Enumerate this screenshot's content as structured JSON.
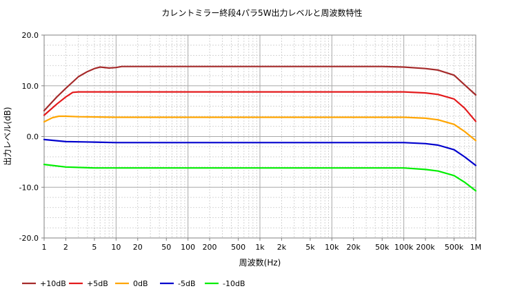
{
  "chart_data": {
    "type": "line",
    "title": "カレントミラー終段4パラ5W出力レベルと周波数特性",
    "xlabel": "周波数(Hz)",
    "ylabel": "出力レベル(dB)",
    "x_scale": "log",
    "xlim": [
      1,
      1000000
    ],
    "ylim": [
      -20,
      20
    ],
    "grid": true,
    "legend_position": "bottom-left",
    "x_ticks": [
      {
        "value": 1,
        "label": "1"
      },
      {
        "value": 2,
        "label": "2"
      },
      {
        "value": 5,
        "label": "5"
      },
      {
        "value": 10,
        "label": "10"
      },
      {
        "value": 20,
        "label": "20"
      },
      {
        "value": 50,
        "label": "50"
      },
      {
        "value": 100,
        "label": "100"
      },
      {
        "value": 200,
        "label": "200"
      },
      {
        "value": 500,
        "label": "500"
      },
      {
        "value": 1000,
        "label": "1k"
      },
      {
        "value": 2000,
        "label": "2k"
      },
      {
        "value": 5000,
        "label": "5k"
      },
      {
        "value": 10000,
        "label": "10k"
      },
      {
        "value": 20000,
        "label": "20k"
      },
      {
        "value": 50000,
        "label": "50k"
      },
      {
        "value": 100000,
        "label": "100k"
      },
      {
        "value": 200000,
        "label": "200k"
      },
      {
        "value": 500000,
        "label": "500k"
      },
      {
        "value": 1000000,
        "label": "1M"
      }
    ],
    "y_ticks": [
      {
        "value": 20,
        "label": "20.0"
      },
      {
        "value": 10,
        "label": "10.0"
      },
      {
        "value": 0,
        "label": "0.0"
      },
      {
        "value": -10,
        "label": "-10.0"
      },
      {
        "value": -20,
        "label": "-20.0"
      }
    ],
    "series": [
      {
        "name": "+10dB",
        "color": "#a52a2a",
        "points": [
          [
            1,
            5.1
          ],
          [
            1.5,
            7.8
          ],
          [
            2,
            9.5
          ],
          [
            3,
            11.8
          ],
          [
            4,
            12.8
          ],
          [
            5,
            13.4
          ],
          [
            6,
            13.7
          ],
          [
            8,
            13.5
          ],
          [
            10,
            13.6
          ],
          [
            12,
            13.8
          ],
          [
            20,
            13.8
          ],
          [
            100,
            13.8
          ],
          [
            1000,
            13.8
          ],
          [
            10000,
            13.8
          ],
          [
            50000,
            13.8
          ],
          [
            100000,
            13.7
          ],
          [
            200000,
            13.4
          ],
          [
            300000,
            13.1
          ],
          [
            500000,
            12.1
          ],
          [
            700000,
            10.2
          ],
          [
            1000000,
            8.2
          ]
        ]
      },
      {
        "name": "+5dB",
        "color": "#e31a1c",
        "points": [
          [
            1,
            4.2
          ],
          [
            1.5,
            6.4
          ],
          [
            2,
            7.8
          ],
          [
            2.5,
            8.7
          ],
          [
            3,
            8.8
          ],
          [
            5,
            8.8
          ],
          [
            10,
            8.8
          ],
          [
            100,
            8.8
          ],
          [
            1000,
            8.8
          ],
          [
            10000,
            8.8
          ],
          [
            100000,
            8.8
          ],
          [
            200000,
            8.6
          ],
          [
            300000,
            8.3
          ],
          [
            500000,
            7.4
          ],
          [
            700000,
            5.6
          ],
          [
            1000000,
            3.0
          ]
        ]
      },
      {
        "name": "0dB",
        "color": "#ffa500",
        "points": [
          [
            1,
            2.9
          ],
          [
            1.3,
            3.7
          ],
          [
            1.6,
            4.0
          ],
          [
            2,
            4.0
          ],
          [
            3,
            3.9
          ],
          [
            10,
            3.8
          ],
          [
            100,
            3.8
          ],
          [
            1000,
            3.8
          ],
          [
            10000,
            3.8
          ],
          [
            50000,
            3.8
          ],
          [
            100000,
            3.8
          ],
          [
            200000,
            3.6
          ],
          [
            300000,
            3.3
          ],
          [
            500000,
            2.4
          ],
          [
            700000,
            1.0
          ],
          [
            1000000,
            -0.8
          ]
        ]
      },
      {
        "name": "-5dB",
        "color": "#0000cd",
        "points": [
          [
            1,
            -0.6
          ],
          [
            2,
            -1.0
          ],
          [
            5,
            -1.1
          ],
          [
            10,
            -1.2
          ],
          [
            100,
            -1.2
          ],
          [
            1000,
            -1.2
          ],
          [
            10000,
            -1.2
          ],
          [
            100000,
            -1.2
          ],
          [
            200000,
            -1.4
          ],
          [
            300000,
            -1.7
          ],
          [
            500000,
            -2.6
          ],
          [
            700000,
            -4.0
          ],
          [
            1000000,
            -5.7
          ]
        ]
      },
      {
        "name": "-10dB",
        "color": "#00ee00",
        "points": [
          [
            1,
            -5.5
          ],
          [
            2,
            -6.0
          ],
          [
            5,
            -6.2
          ],
          [
            10,
            -6.2
          ],
          [
            100,
            -6.2
          ],
          [
            1000,
            -6.2
          ],
          [
            10000,
            -6.2
          ],
          [
            100000,
            -6.2
          ],
          [
            200000,
            -6.5
          ],
          [
            300000,
            -6.8
          ],
          [
            500000,
            -7.7
          ],
          [
            700000,
            -9.0
          ],
          [
            1000000,
            -10.7
          ]
        ]
      }
    ]
  }
}
